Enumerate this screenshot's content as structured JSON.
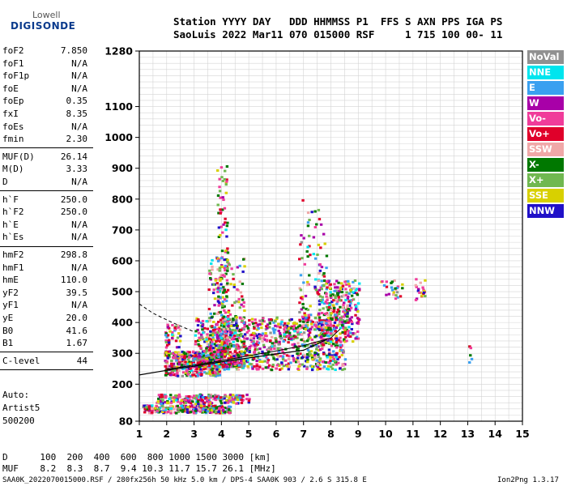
{
  "logo": {
    "line1": "Lowell",
    "line2": "DIGISONDE"
  },
  "header": {
    "line1": "Station YYYY DAY   DDD HHMMSS P1  FFS S AXN PPS IGA PS",
    "line2": "SaoLuis 2022 Mar11 070 015000 RSF     1 715 100 00- 11"
  },
  "params": [
    {
      "label": "foF2",
      "value": "7.850"
    },
    {
      "label": "foF1",
      "value": "N/A"
    },
    {
      "label": "foF1p",
      "value": "N/A"
    },
    {
      "label": "foE",
      "value": "N/A"
    },
    {
      "label": "foEp",
      "value": "0.35"
    },
    {
      "label": "fxI",
      "value": "8.35"
    },
    {
      "label": "foEs",
      "value": "N/A"
    },
    {
      "label": "fmin",
      "value": "2.30"
    },
    {
      "label": "MUF(D)",
      "value": "26.14"
    },
    {
      "label": "M(D)",
      "value": "3.33"
    },
    {
      "label": "D",
      "value": "N/A"
    },
    {
      "label": "h`F",
      "value": "250.0"
    },
    {
      "label": "h`F2",
      "value": "250.0"
    },
    {
      "label": "h`E",
      "value": "N/A"
    },
    {
      "label": "h`Es",
      "value": "N/A"
    },
    {
      "label": "hmF2",
      "value": "298.8"
    },
    {
      "label": "hmF1",
      "value": "N/A"
    },
    {
      "label": "hmE",
      "value": "110.0"
    },
    {
      "label": "yF2",
      "value": "39.5"
    },
    {
      "label": "yF1",
      "value": "N/A"
    },
    {
      "label": "yE",
      "value": "20.0"
    },
    {
      "label": "B0",
      "value": "41.6"
    },
    {
      "label": "B1",
      "value": "1.67"
    },
    {
      "label": "C-level",
      "value": "44"
    }
  ],
  "autoscaling": {
    "line1": "Auto:",
    "line2": "Artist5",
    "line3": "500200"
  },
  "legend": [
    {
      "label": "NoVal",
      "color": "#909090"
    },
    {
      "label": "NNE",
      "color": "#00e5ee"
    },
    {
      "label": "E",
      "color": "#3aa0f0"
    },
    {
      "label": "W",
      "color": "#a800a8"
    },
    {
      "label": "Vo-",
      "color": "#f03c9a"
    },
    {
      "label": "Vo+",
      "color": "#e0002a"
    },
    {
      "label": "SSW",
      "color": "#f0a8a8"
    },
    {
      "label": "X-",
      "color": "#007800"
    },
    {
      "label": "X+",
      "color": "#70b850"
    },
    {
      "label": "SSE",
      "color": "#d8d000"
    },
    {
      "label": "NNW",
      "color": "#2010c8"
    }
  ],
  "chart_data": {
    "type": "scatter",
    "xlim": [
      1,
      15
    ],
    "ylim": [
      80,
      1280
    ],
    "x_ticks": [
      "1",
      "2",
      "3",
      "4",
      "5",
      "6",
      "7",
      "8",
      "9",
      "10",
      "11",
      "12",
      "13",
      "14",
      "15"
    ],
    "y_ticks": [
      {
        "v": 80,
        "label": "80"
      },
      {
        "v": 200,
        "label": "200"
      },
      {
        "v": 300,
        "label": "300"
      },
      {
        "v": 400,
        "label": "400"
      },
      {
        "v": 500,
        "label": "500"
      },
      {
        "v": 600,
        "label": "600"
      },
      {
        "v": 700,
        "label": "700"
      },
      {
        "v": 800,
        "label": "800"
      },
      {
        "v": 900,
        "label": "900"
      },
      {
        "v": 1000,
        "label": "1000"
      },
      {
        "v": 1100,
        "label": "1100"
      },
      {
        "v": 1280,
        "label": "1280"
      }
    ],
    "grid": true,
    "trace_ordinary": [
      [
        1.0,
        230
      ],
      [
        2.0,
        245
      ],
      [
        3.0,
        258
      ],
      [
        4.0,
        272
      ],
      [
        5.0,
        285
      ],
      [
        6.0,
        298
      ],
      [
        7.0,
        310
      ],
      [
        7.85,
        345
      ]
    ],
    "trace_extraordinary": [
      [
        2.0,
        248
      ],
      [
        3.0,
        262
      ],
      [
        4.0,
        276
      ],
      [
        5.0,
        292
      ],
      [
        6.0,
        308
      ],
      [
        7.0,
        325
      ],
      [
        8.0,
        350
      ],
      [
        8.35,
        380
      ]
    ],
    "trace_e_layer": [
      [
        1.0,
        460
      ],
      [
        1.5,
        430
      ],
      [
        2.2,
        400
      ],
      [
        3.0,
        370
      ]
    ],
    "clusters": [
      {
        "x": [
          1.9,
          3.9
        ],
        "y": [
          230,
          310
        ],
        "n": 450
      },
      {
        "x": [
          3.0,
          8.5
        ],
        "y": [
          250,
          420
        ],
        "n": 900
      },
      {
        "x": [
          3.5,
          4.8
        ],
        "y": [
          260,
          620
        ],
        "n": 350
      },
      {
        "x": [
          3.8,
          4.2
        ],
        "y": [
          300,
          920
        ],
        "n": 160
      },
      {
        "x": [
          6.8,
          7.8
        ],
        "y": [
          380,
          800
        ],
        "n": 120
      },
      {
        "x": [
          7.5,
          9.0
        ],
        "y": [
          340,
          540
        ],
        "n": 300
      },
      {
        "x": [
          1.1,
          4.3
        ],
        "y": [
          110,
          135
        ],
        "n": 260
      },
      {
        "x": [
          1.6,
          5.0
        ],
        "y": [
          140,
          170
        ],
        "n": 220
      },
      {
        "x": [
          1.9,
          2.5
        ],
        "y": [
          320,
          400
        ],
        "n": 40
      },
      {
        "x": [
          9.8,
          10.6
        ],
        "y": [
          480,
          540
        ],
        "n": 25
      },
      {
        "x": [
          11.0,
          11.4
        ],
        "y": [
          470,
          560
        ],
        "n": 20
      },
      {
        "x": [
          13.0,
          13.1
        ],
        "y": [
          270,
          330
        ],
        "n": 6
      }
    ]
  },
  "footer": {
    "d_row": "D      100  200  400  600  800 1000 1500 3000 [km]",
    "muf_row": "MUF    8.2  8.3  8.7  9.4 10.3 11.7 15.7 26.1 [MHz]",
    "file_info": "SAA0K_2022070015000.RSF / 280fx256h 50 kHz 5.0 km / DPS-4 SAA0K 903 / 2.6 S 315.8 E",
    "version": "Ion2Png 1.3.17"
  }
}
